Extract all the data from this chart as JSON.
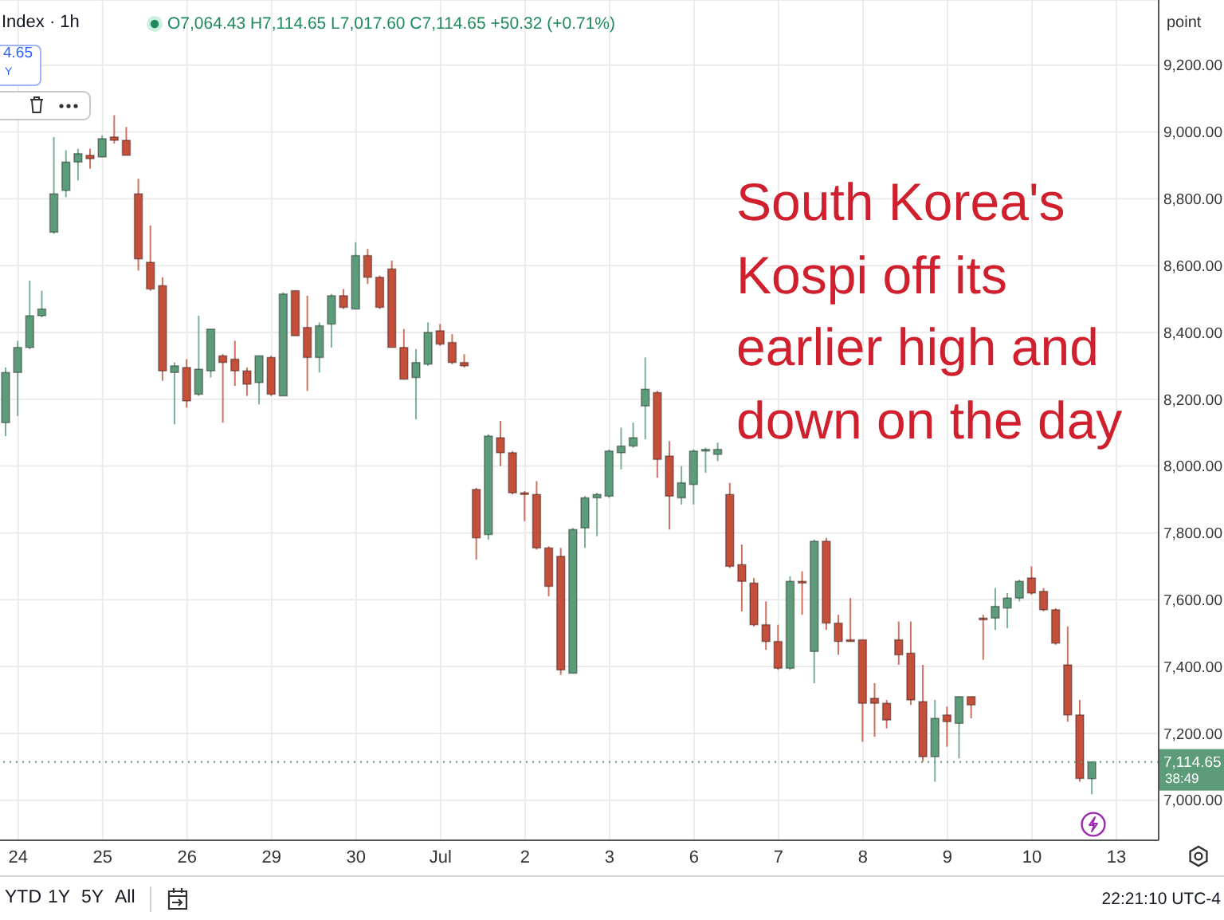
{
  "chart_data": {
    "type": "candlestick",
    "title": "South Korea's Kospi off its earlier high and down on the day",
    "ylabel": "point",
    "categories": [
      null,
      "24",
      null,
      null,
      null,
      null,
      null,
      null,
      "25",
      null,
      null,
      null,
      null,
      null,
      null,
      "26",
      null,
      null,
      null,
      null,
      null,
      null,
      "29",
      null,
      null,
      null,
      null,
      null,
      null,
      "30",
      null,
      null,
      null,
      null,
      null,
      null,
      "Jul",
      null,
      null,
      null,
      null,
      null,
      null,
      "2",
      null,
      null,
      null,
      null,
      null,
      null,
      "3",
      null,
      null,
      null,
      null,
      null,
      null,
      "6",
      null,
      null,
      null,
      null,
      null,
      null,
      "7",
      null,
      null,
      null,
      null,
      null,
      null,
      "8",
      null,
      null,
      null,
      null,
      null,
      null,
      "9",
      null,
      null,
      null,
      null,
      null,
      null,
      "10",
      null,
      null,
      null,
      null,
      null,
      null,
      "13",
      null,
      null,
      null
    ],
    "ohlc": [
      [
        8130,
        8295,
        8090,
        8280
      ],
      [
        8280,
        8375,
        8150,
        8355
      ],
      [
        8355,
        8555,
        8350,
        8450
      ],
      [
        8450,
        8525,
        8445,
        8470
      ],
      [
        8700,
        8985,
        8695,
        8815
      ],
      [
        8825,
        8945,
        8805,
        8910
      ],
      [
        8910,
        8950,
        8855,
        8935
      ],
      [
        8930,
        8950,
        8890,
        8920
      ],
      [
        8925,
        8990,
        8925,
        8980
      ],
      [
        8985,
        9050,
        8965,
        8975
      ],
      [
        8975,
        9015,
        8930,
        8930
      ],
      [
        8815,
        8860,
        8585,
        8620
      ],
      [
        8610,
        8720,
        8525,
        8530
      ],
      [
        8540,
        8565,
        8255,
        8285
      ],
      [
        8280,
        8310,
        8125,
        8300
      ],
      [
        8295,
        8320,
        8175,
        8195
      ],
      [
        8215,
        8450,
        8210,
        8290
      ],
      [
        8285,
        8410,
        8265,
        8410
      ],
      [
        8330,
        8335,
        8130,
        8310
      ],
      [
        8320,
        8375,
        8240,
        8285
      ],
      [
        8285,
        8295,
        8210,
        8245
      ],
      [
        8250,
        8330,
        8185,
        8330
      ],
      [
        8325,
        8330,
        8210,
        8215
      ],
      [
        8210,
        8520,
        8210,
        8515
      ],
      [
        8525,
        8525,
        8390,
        8390
      ],
      [
        8415,
        8510,
        8225,
        8325
      ],
      [
        8325,
        8430,
        8280,
        8420
      ],
      [
        8425,
        8515,
        8355,
        8510
      ],
      [
        8510,
        8530,
        8470,
        8475
      ],
      [
        8470,
        8670,
        8470,
        8630
      ],
      [
        8630,
        8650,
        8545,
        8565
      ],
      [
        8565,
        8570,
        8470,
        8475
      ],
      [
        8590,
        8615,
        8355,
        8355
      ],
      [
        8355,
        8410,
        8260,
        8260
      ],
      [
        8265,
        8350,
        8140,
        8310
      ],
      [
        8305,
        8430,
        8300,
        8400
      ],
      [
        8405,
        8425,
        8360,
        8365
      ],
      [
        8370,
        8395,
        8305,
        8310
      ],
      [
        8310,
        8335,
        8295,
        8300
      ],
      [
        7930,
        7935,
        7720,
        7785
      ],
      [
        7795,
        8095,
        7780,
        8090
      ],
      [
        8085,
        8135,
        8000,
        8040
      ],
      [
        8040,
        8045,
        7915,
        7920
      ],
      [
        7920,
        7925,
        7835,
        7915
      ],
      [
        7915,
        7955,
        7750,
        7755
      ],
      [
        7755,
        7760,
        7610,
        7640
      ],
      [
        7730,
        7755,
        7375,
        7390
      ],
      [
        7380,
        7815,
        7380,
        7810
      ],
      [
        7815,
        7910,
        7755,
        7905
      ],
      [
        7905,
        7920,
        7790,
        7915
      ],
      [
        7910,
        8050,
        7905,
        8045
      ],
      [
        8040,
        8115,
        7990,
        8060
      ],
      [
        8060,
        8130,
        8055,
        8085
      ],
      [
        8180,
        8325,
        8080,
        8230
      ],
      [
        8220,
        8225,
        7965,
        8020
      ],
      [
        8030,
        8075,
        7810,
        7910
      ],
      [
        7905,
        8000,
        7885,
        7950
      ],
      [
        7945,
        8050,
        7885,
        8045
      ],
      [
        8045,
        8055,
        7980,
        8050
      ],
      [
        8035,
        8070,
        8015,
        8050
      ],
      [
        7915,
        7950,
        7695,
        7700
      ],
      [
        7705,
        7765,
        7565,
        7655
      ],
      [
        7650,
        7665,
        7520,
        7525
      ],
      [
        7525,
        7595,
        7450,
        7475
      ],
      [
        7475,
        7525,
        7390,
        7395
      ],
      [
        7395,
        7670,
        7390,
        7655
      ],
      [
        7655,
        7685,
        7555,
        7650
      ],
      [
        7445,
        7780,
        7350,
        7775
      ],
      [
        7775,
        7785,
        7510,
        7530
      ],
      [
        7530,
        7555,
        7435,
        7475
      ],
      [
        7480,
        7605,
        7475,
        7475
      ],
      [
        7480,
        7480,
        7175,
        7290
      ],
      [
        7305,
        7350,
        7190,
        7290
      ],
      [
        7290,
        7300,
        7215,
        7240
      ],
      [
        7480,
        7535,
        7405,
        7435
      ],
      [
        7440,
        7535,
        7285,
        7300
      ],
      [
        7295,
        7405,
        7115,
        7130
      ],
      [
        7130,
        7300,
        7055,
        7245
      ],
      [
        7255,
        7280,
        7160,
        7235
      ],
      [
        7230,
        7310,
        7125,
        7310
      ],
      [
        7310,
        7310,
        7245,
        7285
      ],
      [
        7545,
        7555,
        7420,
        7540
      ],
      [
        7545,
        7635,
        7510,
        7580
      ],
      [
        7575,
        7620,
        7515,
        7605
      ],
      [
        7605,
        7660,
        7595,
        7655
      ],
      [
        7665,
        7700,
        7615,
        7620
      ],
      [
        7625,
        7635,
        7565,
        7570
      ],
      [
        7570,
        7575,
        7465,
        7470
      ],
      [
        7405,
        7520,
        7235,
        7255
      ],
      [
        7255,
        7300,
        7055,
        7065
      ],
      [
        7064.43,
        7114.65,
        7017.6,
        7114.65
      ],
      null,
      null,
      null,
      null,
      null
    ],
    "colors": [
      "#5c9c7a",
      "#5c9c7a",
      "#5c9c7a",
      "#5c9c7a",
      "#5c9c7a",
      "#5c9c7a",
      "#5c9c7a",
      "#c4503c",
      "#5c9c7a",
      "#c4503c",
      "#c4503c",
      "#c4503c",
      "#c4503c",
      "#c4503c",
      "#5c9c7a",
      "#c4503c",
      "#5c9c7a",
      "#5c9c7a",
      "#c4503c",
      "#c4503c",
      "#c4503c",
      "#5c9c7a",
      "#c4503c",
      "#5c9c7a",
      "#c4503c",
      "#c4503c",
      "#5c9c7a",
      "#5c9c7a",
      "#c4503c",
      "#5c9c7a",
      "#c4503c",
      "#c4503c",
      "#c4503c",
      "#c4503c",
      "#5c9c7a",
      "#5c9c7a",
      "#c4503c",
      "#c4503c",
      "#c4503c",
      "#c4503c",
      "#5c9c7a",
      "#c4503c",
      "#c4503c",
      "#c4503c",
      "#c4503c",
      "#c4503c",
      "#c4503c",
      "#5c9c7a",
      "#5c9c7a",
      "#5c9c7a",
      "#5c9c7a",
      "#5c9c7a",
      "#5c9c7a",
      "#5c9c7a",
      "#c4503c",
      "#c4503c",
      "#5c9c7a",
      "#5c9c7a",
      "#5c9c7a",
      "#5c9c7a",
      "#c4503c",
      "#c4503c",
      "#c4503c",
      "#c4503c",
      "#c4503c",
      "#5c9c7a",
      "#c4503c",
      "#5c9c7a",
      "#c4503c",
      "#c4503c",
      "#c4503c",
      "#c4503c",
      "#c4503c",
      "#c4503c",
      "#c4503c",
      "#c4503c",
      "#c4503c",
      "#5c9c7a",
      "#c4503c",
      "#5c9c7a",
      "#c4503c",
      "#c4503c",
      "#5c9c7a",
      "#5c9c7a",
      "#5c9c7a",
      "#c4503c",
      "#c4503c",
      "#c4503c",
      "#c4503c",
      "#c4503c",
      "#5c9c7a",
      null,
      null,
      null,
      null,
      null
    ],
    "ylim": [
      6880,
      9395
    ],
    "yticks": [
      {
        "value": 7000,
        "label": "7,000.00"
      },
      {
        "value": 7200,
        "label": "7,200.00"
      },
      {
        "value": 7400,
        "label": "7,400.00"
      },
      {
        "value": 7600,
        "label": "7,600.00"
      },
      {
        "value": 7800,
        "label": "7,800.00"
      },
      {
        "value": 8000,
        "label": "8,000.00"
      },
      {
        "value": 8200,
        "label": "8,200.00"
      },
      {
        "value": 8400,
        "label": "8,400.00"
      },
      {
        "value": 8600,
        "label": "8,600.00"
      },
      {
        "value": 8800,
        "label": "8,800.00"
      },
      {
        "value": 9000,
        "label": "9,000.00"
      },
      {
        "value": 9200,
        "label": "9,200.00"
      }
    ],
    "grid": true,
    "ref_lines": [
      {
        "axis": "y",
        "value": 7114.65,
        "label": "7,114.65",
        "color": "#5c9c7a",
        "line_style": "dotted"
      }
    ],
    "annotations": [
      "Index · 1h",
      "O7,064.43 H7,114.65 L7,017.60 C7,114.65 +50.32 (+0.71%)",
      "4.65",
      "Y",
      "YTD",
      "1Y",
      "5Y",
      "All",
      "22:21:10 UTC-4",
      "38:49"
    ]
  }
}
